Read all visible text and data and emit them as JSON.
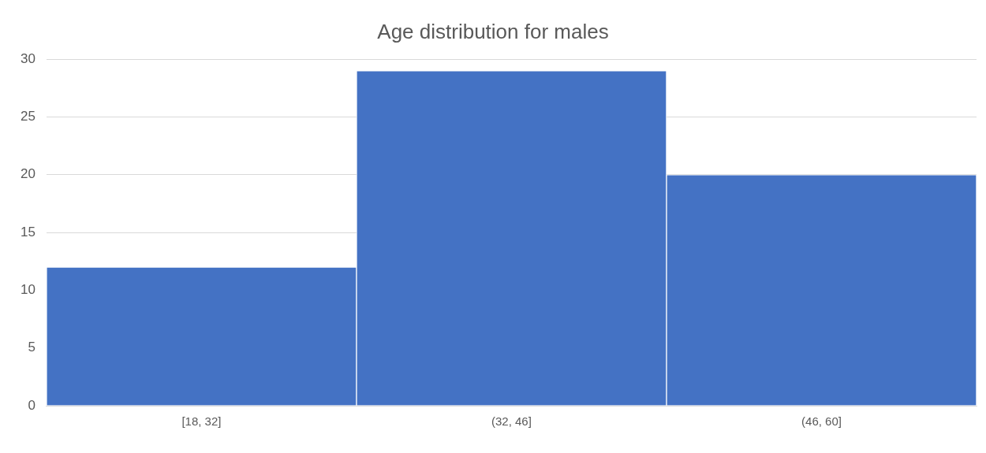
{
  "chart_data": {
    "type": "bar",
    "title": "Age distribution for males",
    "categories": [
      "[18, 32]",
      "(32, 46]",
      "(46, 60]"
    ],
    "values": [
      12,
      29,
      20
    ],
    "color": "#4472c4",
    "ylim": [
      0,
      30
    ],
    "yticks": [
      0,
      5,
      10,
      15,
      20,
      25,
      30
    ],
    "grid": "y",
    "legend": false
  }
}
